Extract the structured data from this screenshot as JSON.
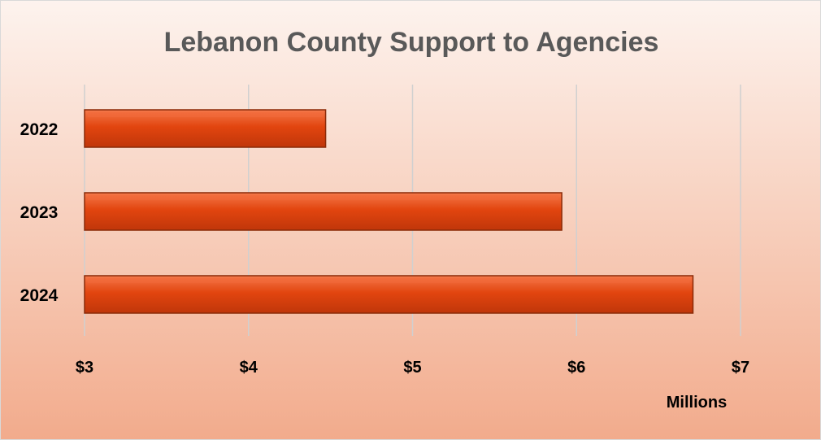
{
  "chart_data": {
    "type": "bar",
    "orientation": "horizontal",
    "title": "Lebanon County Support to Agencies",
    "categories": [
      "2022",
      "2023",
      "2024"
    ],
    "values": [
      4.47,
      5.91,
      6.71
    ],
    "xlim": [
      3,
      7
    ],
    "x_ticks": [
      3,
      4,
      5,
      6,
      7
    ],
    "x_tick_labels": [
      "$3",
      "$4",
      "$5",
      "$6",
      "$7"
    ],
    "x_unit_label": "Millions",
    "grid": "vertical",
    "legend": "none",
    "colors": {
      "bar": "#e2450f",
      "bar_highlight": "#f26a3a",
      "bar_border": "#8a2a08",
      "title": "#595959",
      "grid": "#d0d0d0"
    }
  }
}
